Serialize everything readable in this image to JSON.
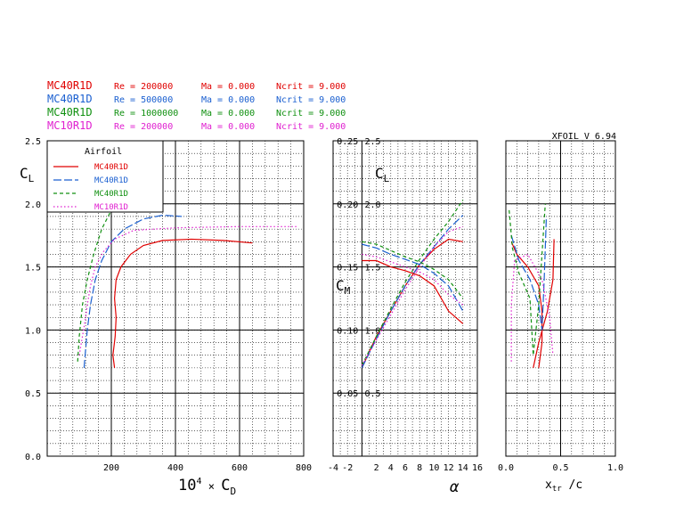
{
  "header": {
    "version": "XFOIL  V 6.94",
    "runs": [
      {
        "airfoil": "MC40R1D",
        "re": "Re =  200000",
        "ma": "Ma = 0.000",
        "ncrit": "Ncrit =  9.000",
        "color": "#e00000"
      },
      {
        "airfoil": "MC40R1D",
        "re": "Re =  500000",
        "ma": "Ma = 0.000",
        "ncrit": "Ncrit =  9.000",
        "color": "#1a5fd0"
      },
      {
        "airfoil": "MC40R1D",
        "re": "Re = 1000000",
        "ma": "Ma = 0.000",
        "ncrit": "Ncrit =  9.000",
        "color": "#109010"
      },
      {
        "airfoil": "MC10R1D",
        "re": "Re =  200000",
        "ma": "Ma = 0.000",
        "ncrit": "Ncrit =  9.000",
        "color": "#e020d0"
      }
    ]
  },
  "legend": {
    "title": "Airfoil",
    "items": [
      {
        "label": "MC40R1D",
        "color": "#e00000",
        "dash": "solid"
      },
      {
        "label": "MC40R1D",
        "color": "#1a5fd0",
        "dash": "long-dash"
      },
      {
        "label": "MC40R1D",
        "color": "#109010",
        "dash": "dash"
      },
      {
        "label": "MC10R1D",
        "color": "#e020d0",
        "dash": "dot"
      }
    ]
  },
  "chart_data": [
    {
      "type": "line",
      "title": "",
      "xlabel": "10⁴ × C_D",
      "ylabel": "C_L",
      "xlim": [
        0,
        800
      ],
      "ylim": [
        0.0,
        2.5
      ],
      "x_ticks": [
        "200",
        "400",
        "600",
        "800"
      ],
      "y_ticks": [
        "0.0",
        "0.5",
        "1.0",
        "1.5",
        "2.0",
        "2.5"
      ],
      "series": [
        {
          "name": "MC40R1D Re 200000",
          "color": "#e00000",
          "points": [
            [
              210,
              0.7
            ],
            [
              205,
              0.8
            ],
            [
              212,
              0.95
            ],
            [
              215,
              1.1
            ],
            [
              210,
              1.25
            ],
            [
              215,
              1.4
            ],
            [
              230,
              1.5
            ],
            [
              260,
              1.6
            ],
            [
              300,
              1.67
            ],
            [
              360,
              1.71
            ],
            [
              450,
              1.72
            ],
            [
              550,
              1.71
            ],
            [
              640,
              1.69
            ]
          ]
        },
        {
          "name": "MC40R1D Re 500000",
          "color": "#1a5fd0",
          "points": [
            [
              115,
              0.7
            ],
            [
              120,
              0.85
            ],
            [
              125,
              1.0
            ],
            [
              135,
              1.2
            ],
            [
              150,
              1.4
            ],
            [
              170,
              1.55
            ],
            [
              200,
              1.7
            ],
            [
              240,
              1.8
            ],
            [
              300,
              1.88
            ],
            [
              360,
              1.91
            ],
            [
              420,
              1.9
            ]
          ]
        },
        {
          "name": "MC40R1D Re 1000000",
          "color": "#109010",
          "points": [
            [
              95,
              0.75
            ],
            [
              100,
              0.95
            ],
            [
              110,
              1.2
            ],
            [
              125,
              1.4
            ],
            [
              145,
              1.6
            ],
            [
              170,
              1.8
            ],
            [
              200,
              1.95
            ],
            [
              240,
              2.03
            ],
            [
              280,
              2.05
            ]
          ]
        },
        {
          "name": "MC10R1D Re 200000",
          "color": "#e020d0",
          "points": [
            [
              100,
              0.8
            ],
            [
              110,
              0.95
            ],
            [
              120,
              1.1
            ],
            [
              125,
              1.2
            ],
            [
              135,
              1.35
            ],
            [
              150,
              1.5
            ],
            [
              175,
              1.62
            ],
            [
              210,
              1.72
            ],
            [
              270,
              1.79
            ],
            [
              400,
              1.81
            ],
            [
              600,
              1.82
            ],
            [
              780,
              1.82
            ]
          ]
        }
      ]
    },
    {
      "type": "line",
      "title": "",
      "xlabel": "α",
      "ylabel": "C_L",
      "ylabel2": "C_M",
      "xlim": [
        -4,
        16
      ],
      "ylim": [
        0.0,
        2.5
      ],
      "cm_lim": [
        0.0,
        0.25
      ],
      "x_ticks": [
        "-4",
        "-2",
        "2",
        "4",
        "6",
        "8",
        "10",
        "12",
        "14",
        "16"
      ],
      "y_ticks": [
        "0.5",
        "1.0",
        "1.5",
        "2.0",
        "2.5"
      ],
      "cm_ticks": [
        "0.05",
        "0.10",
        "0.15",
        "0.20",
        "0.25"
      ],
      "series": [
        {
          "name": "MC40R1D Re 200000 CL",
          "color": "#e00000",
          "points": [
            [
              0,
              0.7
            ],
            [
              2,
              0.95
            ],
            [
              4,
              1.15
            ],
            [
              6,
              1.35
            ],
            [
              8,
              1.52
            ],
            [
              10,
              1.64
            ],
            [
              12,
              1.72
            ],
            [
              14,
              1.7
            ]
          ]
        },
        {
          "name": "MC40R1D Re 500000 CL",
          "color": "#1a5fd0",
          "points": [
            [
              0,
              0.7
            ],
            [
              2,
              0.93
            ],
            [
              4,
              1.15
            ],
            [
              6,
              1.35
            ],
            [
              8,
              1.52
            ],
            [
              10,
              1.66
            ],
            [
              12,
              1.8
            ],
            [
              14,
              1.91
            ]
          ]
        },
        {
          "name": "MC40R1D Re 1000000 CL",
          "color": "#109010",
          "points": [
            [
              0,
              0.72
            ],
            [
              2,
              0.95
            ],
            [
              4,
              1.17
            ],
            [
              6,
              1.38
            ],
            [
              8,
              1.56
            ],
            [
              10,
              1.72
            ],
            [
              12,
              1.86
            ],
            [
              14,
              2.03
            ]
          ]
        },
        {
          "name": "MC10R1D Re 200000 CL",
          "color": "#e020d0",
          "points": [
            [
              0,
              0.72
            ],
            [
              2,
              0.92
            ],
            [
              4,
              1.12
            ],
            [
              6,
              1.32
            ],
            [
              8,
              1.5
            ],
            [
              10,
              1.66
            ],
            [
              12,
              1.78
            ],
            [
              14,
              1.82
            ]
          ]
        },
        {
          "name": "MC40R1D Re 200000 CM",
          "color": "#e00000",
          "points": [
            [
              0,
              0.155
            ],
            [
              2,
              0.155
            ],
            [
              4,
              0.15
            ],
            [
              6,
              0.147
            ],
            [
              8,
              0.143
            ],
            [
              10,
              0.135
            ],
            [
              12,
              0.115
            ],
            [
              14,
              0.105
            ]
          ]
        },
        {
          "name": "MC40R1D Re 500000 CM",
          "color": "#1a5fd0",
          "points": [
            [
              0,
              0.168
            ],
            [
              2,
              0.165
            ],
            [
              4,
              0.16
            ],
            [
              6,
              0.156
            ],
            [
              8,
              0.152
            ],
            [
              10,
              0.145
            ],
            [
              12,
              0.135
            ],
            [
              14,
              0.115
            ]
          ]
        },
        {
          "name": "MC40R1D Re 1000000 CM",
          "color": "#109010",
          "points": [
            [
              0,
              0.17
            ],
            [
              2,
              0.168
            ],
            [
              4,
              0.163
            ],
            [
              6,
              0.158
            ],
            [
              8,
              0.154
            ],
            [
              10,
              0.148
            ],
            [
              12,
              0.14
            ],
            [
              14,
              0.125
            ]
          ]
        },
        {
          "name": "MC10R1D Re 200000 CM",
          "color": "#e020d0",
          "points": [
            [
              0,
              0.16
            ],
            [
              2,
              0.158
            ],
            [
              4,
              0.154
            ],
            [
              6,
              0.15
            ],
            [
              8,
              0.146
            ],
            [
              10,
              0.14
            ],
            [
              12,
              0.128
            ],
            [
              14,
              0.12
            ]
          ]
        }
      ]
    },
    {
      "type": "line",
      "title": "",
      "xlabel": "x_tr /c",
      "ylabel": "C_L",
      "xlim": [
        0.0,
        1.0
      ],
      "ylim": [
        0.0,
        2.5
      ],
      "x_ticks": [
        "0.0",
        "0.5",
        "1.0"
      ],
      "series": [
        {
          "name": "MC40R1D Re 200000 top",
          "color": "#e00000",
          "points": [
            [
              0.05,
              1.7
            ],
            [
              0.1,
              1.6
            ],
            [
              0.2,
              1.5
            ],
            [
              0.3,
              1.35
            ],
            [
              0.33,
              1.15
            ],
            [
              0.33,
              0.9
            ],
            [
              0.3,
              0.7
            ]
          ]
        },
        {
          "name": "MC40R1D Re 200000 bottom",
          "color": "#e00000",
          "points": [
            [
              0.25,
              0.7
            ],
            [
              0.3,
              0.9
            ],
            [
              0.38,
              1.15
            ],
            [
              0.43,
              1.4
            ],
            [
              0.44,
              1.72
            ]
          ]
        },
        {
          "name": "MC40R1D Re 500000",
          "color": "#1a5fd0",
          "points": [
            [
              0.05,
              1.75
            ],
            [
              0.12,
              1.55
            ],
            [
              0.22,
              1.4
            ],
            [
              0.3,
              1.2
            ],
            [
              0.33,
              1.0
            ],
            [
              0.35,
              1.4
            ],
            [
              0.37,
              1.9
            ]
          ]
        },
        {
          "name": "MC40R1D Re 1000000",
          "color": "#109010",
          "points": [
            [
              0.03,
              1.95
            ],
            [
              0.06,
              1.65
            ],
            [
              0.12,
              1.45
            ],
            [
              0.22,
              1.25
            ],
            [
              0.25,
              0.8
            ],
            [
              0.3,
              1.2
            ],
            [
              0.33,
              1.6
            ],
            [
              0.36,
              2.0
            ]
          ]
        },
        {
          "name": "MC10R1D Re 200000",
          "color": "#e020d0",
          "points": [
            [
              0.05,
              0.75
            ],
            [
              0.05,
              1.2
            ],
            [
              0.08,
              1.55
            ],
            [
              0.2,
              1.6
            ],
            [
              0.33,
              1.4
            ],
            [
              0.4,
              1.1
            ],
            [
              0.43,
              0.8
            ]
          ]
        }
      ]
    }
  ]
}
